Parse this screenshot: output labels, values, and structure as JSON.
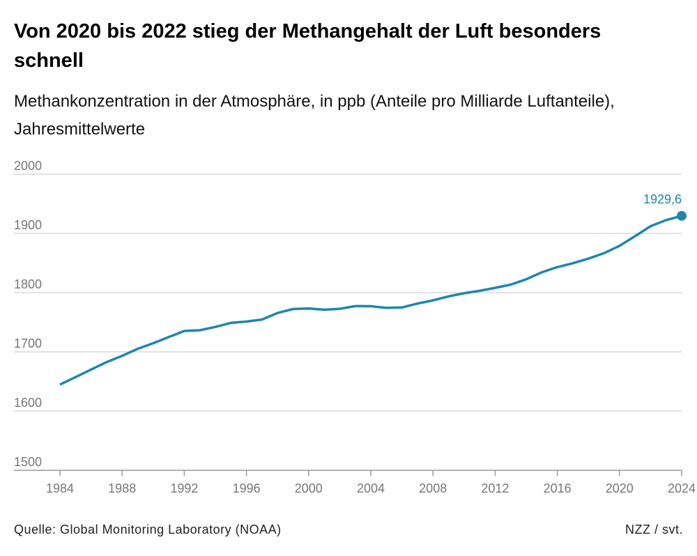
{
  "title": "Von 2020 bis 2022 stieg der Methangehalt der Luft besonders schnell",
  "subtitle": "Methankonzentration in der Atmosphäre, in ppb (Anteile pro Milliarde Luftanteile), Jahresmittelwerte",
  "source": "Quelle: Global Monitoring Laboratory (NOAA)",
  "credit": "NZZ / svt.",
  "chart_data": {
    "type": "line",
    "title": "Von 2020 bis 2022 stieg der Methangehalt der Luft besonders schnell",
    "xlabel": "",
    "ylabel": "",
    "xlim": [
      1984,
      2024
    ],
    "ylim": [
      1500,
      2000
    ],
    "yticks": [
      1500,
      1600,
      1700,
      1800,
      1900,
      2000
    ],
    "xticks": [
      1984,
      1988,
      1992,
      1996,
      2000,
      2004,
      2008,
      2012,
      2016,
      2020,
      2024
    ],
    "grid": true,
    "color": "#1d87aa",
    "end_label": "1929,6",
    "x": [
      1984,
      1985,
      1986,
      1987,
      1988,
      1989,
      1990,
      1991,
      1992,
      1993,
      1994,
      1995,
      1996,
      1997,
      1998,
      1999,
      2000,
      2001,
      2002,
      2003,
      2004,
      2005,
      2006,
      2007,
      2008,
      2009,
      2010,
      2011,
      2012,
      2013,
      2014,
      2015,
      2016,
      2017,
      2018,
      2019,
      2020,
      2021,
      2022,
      2023,
      2024
    ],
    "y": [
      1644.8,
      1657.3,
      1670.1,
      1682.7,
      1693.3,
      1705.2,
      1714.6,
      1724.9,
      1735.3,
      1736.5,
      1742.1,
      1748.9,
      1751.2,
      1754.6,
      1765.6,
      1772.4,
      1773.2,
      1771.2,
      1772.7,
      1777.3,
      1777.0,
      1774.2,
      1774.9,
      1781.5,
      1787.0,
      1793.6,
      1798.9,
      1803.1,
      1808.1,
      1813.5,
      1822.6,
      1834.3,
      1843.1,
      1849.7,
      1857.4,
      1866.6,
      1879.1,
      1895.3,
      1912.2,
      1922.5,
      1929.6
    ]
  }
}
